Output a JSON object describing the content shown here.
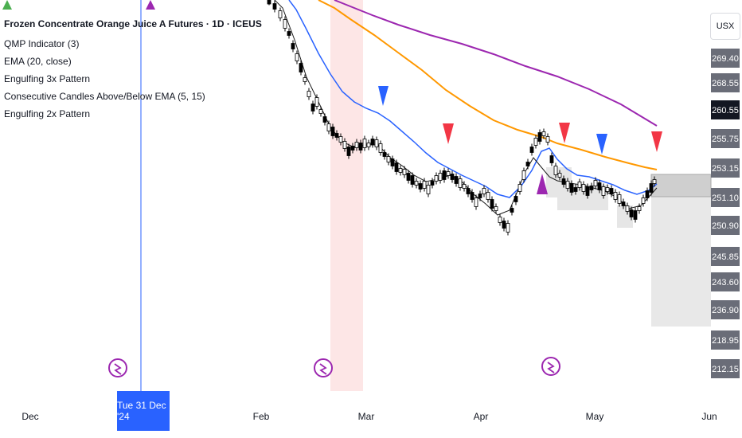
{
  "legend": {
    "title": "Frozen Concentrate Orange Juice A Futures · 1D · ICEUS",
    "indicators": [
      "QMP Indicator (3)",
      "EMA (20, close)",
      "Engulfing 3x Pattern",
      "Consecutive Candles Above/Below EMA (5, 15)",
      "Engulfing 2x Pattern"
    ]
  },
  "currency_button": "USX",
  "x_axis": {
    "ticks": [
      "Dec",
      "Feb",
      "Mar",
      "Apr",
      "May",
      "Jun"
    ],
    "cursor_label": "Tue 31 Dec '24"
  },
  "price_labels": [
    "269.40",
    "268.55",
    "260.55",
    "255.75",
    "253.15",
    "251.10",
    "250.90",
    "245.85",
    "243.60",
    "236.90",
    "218.95",
    "212.15"
  ],
  "colors": {
    "bull_candle": "#ffffff",
    "bear_candle": "#000000",
    "ema20": "#2962ff",
    "ema_orange": "#ff9800",
    "ema_purple": "#9c27b0",
    "signal_up": "#2962ff",
    "signal_down": "#f23645",
    "marker_purple": "#9c27b0",
    "marker_green": "#4caf50",
    "highlight_band": "#fde6e6",
    "cursor": "#2962ff"
  },
  "icons": {
    "event_marker": "flash-icon"
  },
  "chart_data": {
    "type": "candlestick",
    "symbol": "Frozen Concentrate Orange Juice A Futures",
    "interval": "1D",
    "exchange": "ICEUS",
    "currency": "USX",
    "series": [
      {
        "name": "EMA (20, close)",
        "color": "#2962ff"
      }
    ]
  }
}
